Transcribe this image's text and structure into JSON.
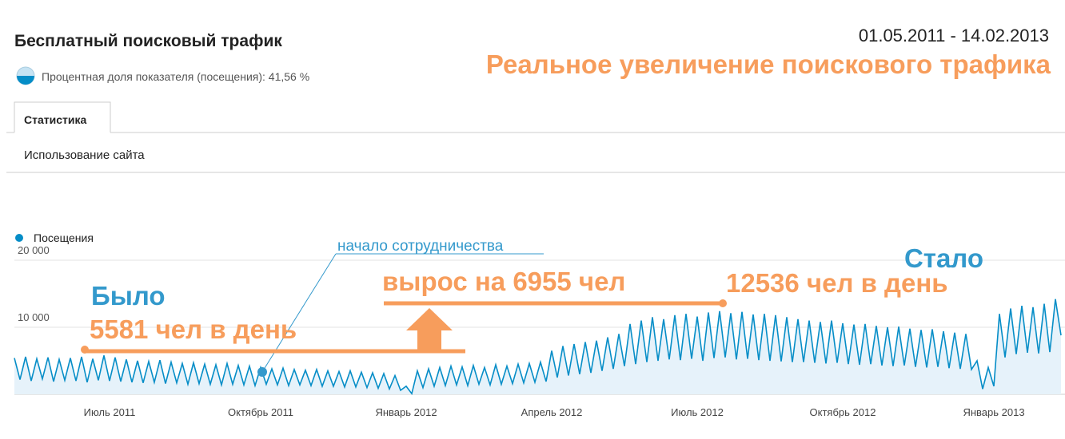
{
  "header": {
    "title": "Бесплатный поисковый трафик",
    "subtitle": "Процентная доля показателя (посещения): 41,56 %",
    "date_range": "01.05.2011 - 14.02.2013",
    "headline": "Реальное увеличение поискового трафика"
  },
  "tabs": [
    "Статистика"
  ],
  "section": "Использование сайта",
  "chart_data": {
    "type": "line",
    "categories": [
      null,
      null,
      null,
      null,
      null,
      null,
      null,
      null,
      null,
      null,
      null,
      null,
      null,
      null,
      null,
      null,
      null,
      "Июль 2011",
      null,
      null,
      null,
      null,
      null,
      null,
      null,
      null,
      null,
      null,
      null,
      null,
      null,
      null,
      null,
      null,
      null,
      null,
      null,
      null,
      null,
      null,
      null,
      null,
      null,
      null,
      "Октябрь 2011",
      null,
      null,
      null,
      null,
      null,
      null,
      null,
      null,
      null,
      null,
      null,
      null,
      null,
      null,
      null,
      null,
      null,
      null,
      null,
      null,
      null,
      null,
      null,
      null,
      null,
      "Январь 2012",
      null,
      null,
      null,
      null,
      null,
      null,
      null,
      null,
      null,
      null,
      null,
      null,
      null,
      null,
      null,
      null,
      null,
      null,
      null,
      null,
      null,
      null,
      null,
      null,
      null,
      "Апрель 2012",
      null,
      null,
      null,
      null,
      null,
      null,
      null,
      null,
      null,
      null,
      null,
      null,
      null,
      null,
      null,
      null,
      null,
      null,
      null,
      null,
      null,
      null,
      null,
      null,
      null,
      "Июль 2012",
      null,
      null,
      null,
      null,
      null,
      null,
      null,
      null,
      null,
      null,
      null,
      null,
      null,
      null,
      null,
      null,
      null,
      null,
      null,
      null,
      null,
      null,
      null,
      null,
      null,
      "Октябрь 2012",
      null,
      null,
      null,
      null,
      null,
      null,
      null,
      null,
      null,
      null,
      null,
      null,
      null,
      null,
      null,
      null,
      null,
      null,
      null,
      null,
      null,
      null,
      null,
      null,
      null,
      null,
      "Январь 2013",
      null,
      null,
      null,
      null,
      null,
      null,
      null,
      null,
      null,
      null,
      null,
      null
    ],
    "series": [
      {
        "name": "Посещения",
        "color": "#058dc7",
        "values": [
          5400,
          2200,
          5600,
          2000,
          5300,
          2300,
          5500,
          1900,
          5200,
          2100,
          5400,
          2000,
          5600,
          1800,
          5300,
          2100,
          5800,
          2000,
          5500,
          1900,
          5200,
          1800,
          5000,
          1700,
          4900,
          1800,
          5100,
          1600,
          4800,
          1700,
          4600,
          1500,
          4700,
          1600,
          4500,
          1500,
          4400,
          1400,
          4600,
          1500,
          4300,
          1400,
          4200,
          1300,
          4000,
          1500,
          3800,
          1400,
          3900,
          1300,
          3700,
          1400,
          3600,
          1300,
          3700,
          1200,
          3500,
          1200,
          3400,
          1100,
          3500,
          1100,
          3300,
          1000,
          3200,
          900,
          3100,
          800,
          2800,
          600,
          1200,
          100,
          3500,
          1000,
          3800,
          1200,
          4000,
          1300,
          4200,
          1400,
          4100,
          1300,
          4300,
          1500,
          4000,
          1400,
          4400,
          1500,
          4200,
          1600,
          4500,
          1700,
          4600,
          1800,
          4800,
          1900,
          6500,
          2500,
          7200,
          2800,
          7500,
          3000,
          7800,
          3200,
          8000,
          3500,
          8500,
          3800,
          9000,
          4200,
          10500,
          4500,
          11000,
          4800,
          11500,
          5000,
          11200,
          5200,
          11800,
          5100,
          12000,
          5300,
          11600,
          5000,
          12200,
          5400,
          12400,
          5500,
          12100,
          5200,
          12300,
          5300,
          11900,
          5100,
          12000,
          5000,
          11800,
          4900,
          11500,
          4800,
          11200,
          4800,
          11000,
          4700,
          10800,
          4600,
          11000,
          4700,
          10600,
          4500,
          10400,
          4400,
          10500,
          4500,
          10200,
          4300,
          10000,
          4200,
          10100,
          4300,
          9800,
          4100,
          9600,
          4000,
          9700,
          4100,
          9400,
          3900,
          9200,
          3800,
          9000,
          3700,
          5000,
          800,
          4000,
          1200,
          12000,
          5500,
          12800,
          6000,
          13200,
          6200,
          13000,
          6100,
          13500,
          6300,
          14200,
          8800
        ]
      }
    ],
    "ylim": [
      0,
      20000
    ],
    "yticks": [
      {
        "value": 10000,
        "label": "10 000"
      },
      {
        "value": 20000,
        "label": "20 000"
      }
    ],
    "grid": true,
    "annotations": {
      "start": "начало сотрудничества",
      "before_label": "Было",
      "before_value": "5581 чел в день",
      "growth": "вырос на 6955 чел",
      "after_label": "Стало",
      "after_value": "12536 чел в день"
    }
  }
}
